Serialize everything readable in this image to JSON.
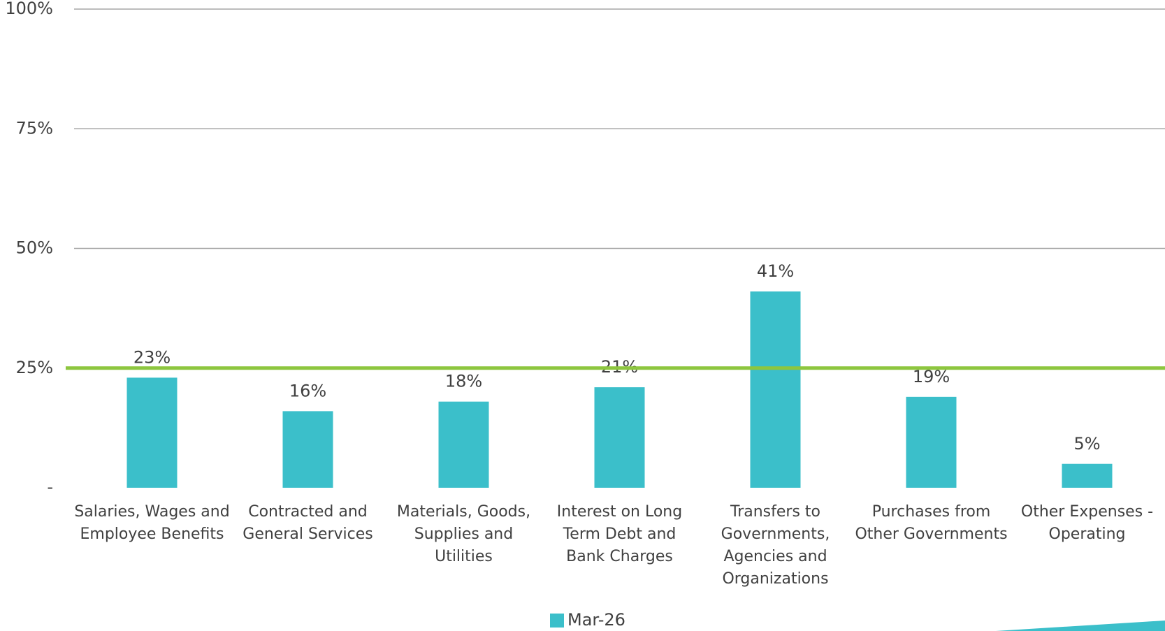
{
  "chart_data": {
    "type": "bar",
    "categories": [
      "Salaries, Wages and Employee Benefits",
      "Contracted and General Services",
      "Materials, Goods, Supplies and Utilities",
      "Interest on Long Term Debt and Bank Charges",
      "Transfers to Governments, Agencies and Organizations",
      "Purchases from Other Governments",
      "Other Expenses - Operating"
    ],
    "series": [
      {
        "name": "Mar-26",
        "color": "#3bbfca",
        "values": [
          23,
          16,
          18,
          21,
          41,
          19,
          5
        ],
        "value_labels": [
          "23%",
          "16%",
          "18%",
          "21%",
          "41%",
          "19%",
          "5%"
        ]
      }
    ],
    "ylim": [
      0,
      100
    ],
    "yticks": [
      {
        "value": 0,
        "label": "-"
      },
      {
        "value": 25,
        "label": "25%"
      },
      {
        "value": 50,
        "label": "50%"
      },
      {
        "value": 75,
        "label": "75%"
      },
      {
        "value": 100,
        "label": "100%"
      }
    ],
    "grid": true,
    "reference_line": {
      "value": 25,
      "color": "#8dc63f"
    },
    "legend": "bottom"
  }
}
